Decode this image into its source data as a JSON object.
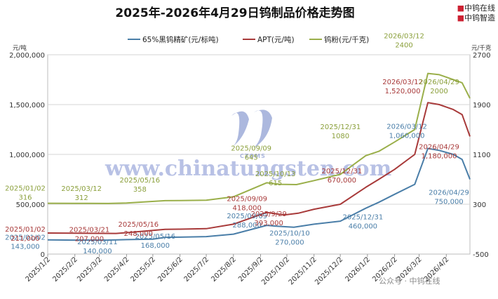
{
  "header": {
    "title": "2025年-2026年4月29日钨制品价格走势图",
    "brand_line1": "中钨在线",
    "brand_line2": "中钨智造"
  },
  "axes": {
    "left_unit": "元/吨",
    "right_unit": "元/千克",
    "left_ticks": [
      "0",
      "500,000",
      "1,000,000",
      "1,500,000",
      "2,000,000"
    ],
    "right_ticks": [
      "-500",
      "300",
      "1100",
      "1900",
      "2700"
    ]
  },
  "watermark": {
    "url": "www.chinatungsten.com",
    "logo_text": "CTOMS",
    "footer": "公众号 · 中钨在线"
  },
  "colors": {
    "concentrate": "#4a7ea8",
    "apt": "#a83a3a",
    "powder": "#9aaf4a",
    "grid": "#d4d4d4"
  },
  "chart_data": {
    "type": "line",
    "title": "2025年-2026年4月29日钨制品价格走势图",
    "x_tick_labels": [
      "2025/1/2",
      "2025/2/2",
      "2025/3/2",
      "2025/4/2",
      "2025/5/2",
      "2025/6/2",
      "2025/7/2",
      "2025/8/2",
      "2025/9/2",
      "2025/10/2",
      "2025/11/2",
      "2025/12/2",
      "2026/1/2",
      "2026/2/2",
      "2026/3/2",
      "2026/4/2"
    ],
    "left_axis": {
      "unit": "元/吨",
      "range": [
        0,
        2000000
      ]
    },
    "right_axis": {
      "unit": "元/千克",
      "range": [
        -500,
        2700
      ]
    },
    "grid": true,
    "legend_position": "top",
    "series": [
      {
        "name": "65%黑钨精矿(元/标吨)",
        "axis": "left",
        "points": [
          [
            "2025/01/02",
            143000
          ],
          [
            "2025/02/02",
            140000
          ],
          [
            "2025/03/11",
            140000
          ],
          [
            "2025/04/02",
            145000
          ],
          [
            "2025/05/02",
            150000
          ],
          [
            "2025/05/16",
            168000
          ],
          [
            "2025/06/02",
            170000
          ],
          [
            "2025/07/02",
            175000
          ],
          [
            "2025/08/02",
            200000
          ],
          [
            "2025/09/09",
            288000
          ],
          [
            "2025/09/20",
            280000
          ],
          [
            "2025/10/10",
            270000
          ],
          [
            "2025/11/02",
            300000
          ],
          [
            "2025/12/02",
            330000
          ],
          [
            "2025/12/31",
            460000
          ],
          [
            "2026/01/15",
            520000
          ],
          [
            "2026/02/02",
            600000
          ],
          [
            "2026/02/25",
            700000
          ],
          [
            "2026/03/12",
            1060000
          ],
          [
            "2026/03/25",
            1040000
          ],
          [
            "2026/04/10",
            1000000
          ],
          [
            "2026/04/20",
            950000
          ],
          [
            "2026/04/29",
            750000
          ]
        ]
      },
      {
        "name": "APT(元/吨)",
        "axis": "left",
        "points": [
          [
            "2025/01/02",
            211000
          ],
          [
            "2025/02/02",
            210000
          ],
          [
            "2025/03/21",
            207000
          ],
          [
            "2025/04/02",
            215000
          ],
          [
            "2025/05/16",
            248000
          ],
          [
            "2025/06/02",
            250000
          ],
          [
            "2025/07/02",
            255000
          ],
          [
            "2025/08/02",
            300000
          ],
          [
            "2025/09/09",
            418000
          ],
          [
            "2025/09/29",
            393000
          ],
          [
            "2025/10/15",
            410000
          ],
          [
            "2025/11/02",
            450000
          ],
          [
            "2025/12/02",
            500000
          ],
          [
            "2025/12/31",
            670000
          ],
          [
            "2026/01/15",
            750000
          ],
          [
            "2026/02/02",
            850000
          ],
          [
            "2026/02/25",
            1000000
          ],
          [
            "2026/03/12",
            1520000
          ],
          [
            "2026/03/25",
            1500000
          ],
          [
            "2026/04/10",
            1450000
          ],
          [
            "2026/04/20",
            1400000
          ],
          [
            "2026/04/29",
            1180000
          ]
        ]
      },
      {
        "name": "钨粉(元/千克)",
        "axis": "right",
        "points": [
          [
            "2025/01/02",
            316
          ],
          [
            "2025/02/02",
            315
          ],
          [
            "2025/03/12",
            312
          ],
          [
            "2025/04/02",
            320
          ],
          [
            "2025/05/16",
            358
          ],
          [
            "2025/06/02",
            360
          ],
          [
            "2025/07/02",
            365
          ],
          [
            "2025/08/02",
            420
          ],
          [
            "2025/09/09",
            645
          ],
          [
            "2025/09/25",
            620
          ],
          [
            "2025/10/13",
            615
          ],
          [
            "2025/11/02",
            680
          ],
          [
            "2025/12/02",
            780
          ],
          [
            "2025/12/31",
            1080
          ],
          [
            "2026/01/15",
            1150
          ],
          [
            "2026/02/02",
            1300
          ],
          [
            "2026/02/25",
            1500
          ],
          [
            "2026/03/12",
            2400
          ],
          [
            "2026/03/25",
            2380
          ],
          [
            "2026/04/10",
            2300
          ],
          [
            "2026/04/20",
            2250
          ],
          [
            "2026/04/29",
            2000
          ]
        ]
      }
    ],
    "annotations": [
      {
        "series": 0,
        "date": "2025/01/02",
        "date_label": "2025/01/02",
        "value_label": "143,000"
      },
      {
        "series": 0,
        "date": "2025/03/11",
        "date_label": "2025/03/11",
        "value_label": "140,000"
      },
      {
        "series": 0,
        "date": "2025/05/16",
        "date_label": "2025/05/16",
        "value_label": "168,000"
      },
      {
        "series": 0,
        "date": "2025/09/09",
        "date_label": "2025/09/09",
        "value_label": "288,000"
      },
      {
        "series": 0,
        "date": "2025/10/10",
        "date_label": "2025/10/10",
        "value_label": "270,000"
      },
      {
        "series": 0,
        "date": "2025/12/31",
        "date_label": "2025/12/31",
        "value_label": "460,000"
      },
      {
        "series": 0,
        "date": "2026/03/12",
        "date_label": "2026/03/12",
        "value_label": "1,060,000"
      },
      {
        "series": 0,
        "date": "2026/04/29",
        "date_label": "2026/04/29",
        "value_label": "750,000"
      },
      {
        "series": 1,
        "date": "2025/01/02",
        "date_label": "2025/01/02",
        "value_label": "211,000"
      },
      {
        "series": 1,
        "date": "2025/03/21",
        "date_label": "2025/03/21",
        "value_label": "207,000"
      },
      {
        "series": 1,
        "date": "2025/05/16",
        "date_label": "2025/05/16",
        "value_label": "248,000"
      },
      {
        "series": 1,
        "date": "2025/09/09",
        "date_label": "2025/09/09",
        "value_label": "418,000"
      },
      {
        "series": 1,
        "date": "2025/09/29",
        "date_label": "2025/9/29",
        "value_label": "393,000"
      },
      {
        "series": 1,
        "date": "2025/12/31",
        "date_label": "2025/12/31",
        "value_label": "670,000"
      },
      {
        "series": 1,
        "date": "2026/03/12",
        "date_label": "2026/03/12",
        "value_label": "1,520,000"
      },
      {
        "series": 1,
        "date": "2026/04/29",
        "date_label": "2026/04/29",
        "value_label": "1,180,000"
      },
      {
        "series": 2,
        "date": "2025/01/02",
        "date_label": "2025/01/02",
        "value_label": "316"
      },
      {
        "series": 2,
        "date": "2025/03/12",
        "date_label": "2025/03/12",
        "value_label": "312"
      },
      {
        "series": 2,
        "date": "2025/05/16",
        "date_label": "2025/05/16",
        "value_label": "358"
      },
      {
        "series": 2,
        "date": "2025/09/09",
        "date_label": "2025/09/09",
        "value_label": "645"
      },
      {
        "series": 2,
        "date": "2025/10/13",
        "date_label": "2025/10/13",
        "value_label": "615"
      },
      {
        "series": 2,
        "date": "2025/12/31",
        "date_label": "2025/12/31",
        "value_label": "1080"
      },
      {
        "series": 2,
        "date": "2026/03/12",
        "date_label": "2026/03/12",
        "value_label": "2400"
      },
      {
        "series": 2,
        "date": "2026/04/29",
        "date_label": "2026/04/29",
        "value_label": "2000"
      }
    ]
  }
}
